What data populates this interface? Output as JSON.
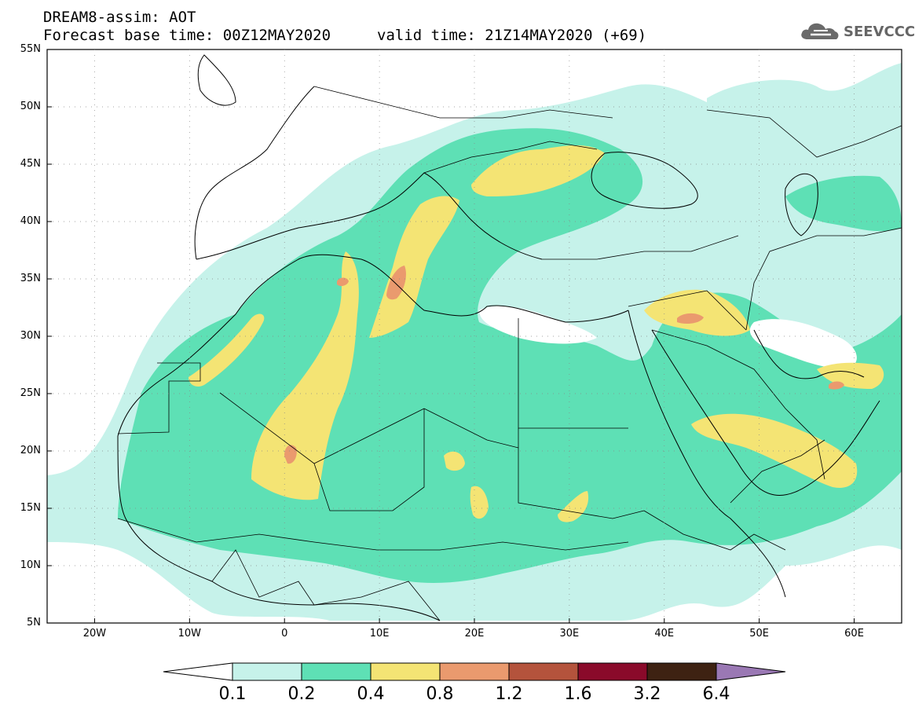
{
  "header": {
    "line1": "DREAM8-assim: AOT",
    "line2": "Forecast base time: 00Z12MAY2020",
    "valid": "valid time: 21Z14MAY2020 (+69)"
  },
  "logo": {
    "text": "SEEVCCC",
    "icon": "cloud-icon"
  },
  "map": {
    "lon_range": [
      -25,
      65
    ],
    "lat_range": [
      5,
      55
    ],
    "lat_ticks": [
      {
        "value": 55,
        "label": "55N"
      },
      {
        "value": 50,
        "label": "50N"
      },
      {
        "value": 45,
        "label": "45N"
      },
      {
        "value": 40,
        "label": "40N"
      },
      {
        "value": 35,
        "label": "35N"
      },
      {
        "value": 30,
        "label": "30N"
      },
      {
        "value": 25,
        "label": "25N"
      },
      {
        "value": 20,
        "label": "20N"
      },
      {
        "value": 15,
        "label": "15N"
      },
      {
        "value": 10,
        "label": "10N"
      },
      {
        "value": 5,
        "label": "5N"
      }
    ],
    "lon_ticks": [
      {
        "value": -20,
        "label": "20W"
      },
      {
        "value": -10,
        "label": "10W"
      },
      {
        "value": 0,
        "label": "0"
      },
      {
        "value": 10,
        "label": "10E"
      },
      {
        "value": 20,
        "label": "20E"
      },
      {
        "value": 30,
        "label": "30E"
      },
      {
        "value": 40,
        "label": "40E"
      },
      {
        "value": 50,
        "label": "50E"
      },
      {
        "value": 60,
        "label": "60E"
      }
    ],
    "colors": {
      "c01": "#c6f2ea",
      "c02": "#5ee0b5",
      "c04": "#f4e474",
      "c08": "#ea9a6e",
      "c12": "#b4533c",
      "c16": "#8a0a2a",
      "c32": "#3e2212",
      "c64": "#9a78b4"
    }
  },
  "colorbar": {
    "labels": [
      "0.1",
      "0.2",
      "0.4",
      "0.8",
      "1.2",
      "1.6",
      "3.2",
      "6.4"
    ],
    "bins": [
      "#c6f2ea",
      "#5ee0b5",
      "#f4e474",
      "#ea9a6e",
      "#b4533c",
      "#8a0a2a",
      "#3e2212"
    ],
    "low_color": "#ffffff",
    "high_color": "#9a78b4"
  }
}
